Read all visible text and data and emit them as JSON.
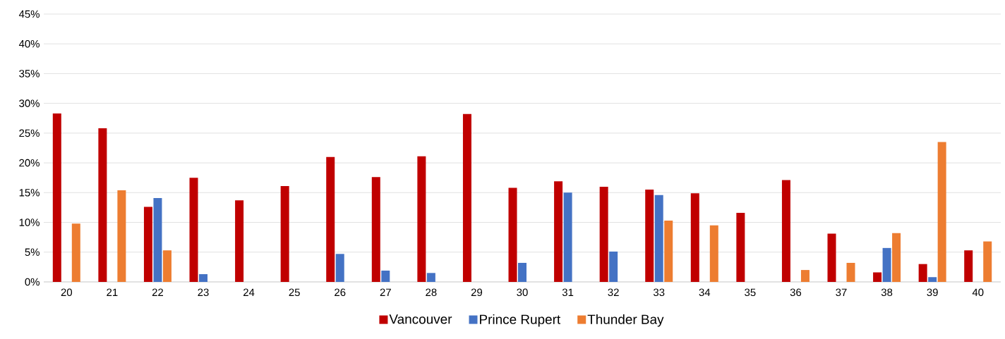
{
  "chart_data": {
    "type": "bar",
    "categories": [
      "20",
      "21",
      "22",
      "23",
      "24",
      "25",
      "26",
      "27",
      "28",
      "29",
      "30",
      "31",
      "32",
      "33",
      "34",
      "35",
      "36",
      "37",
      "38",
      "39",
      "40"
    ],
    "series": [
      {
        "name": "Vancouver",
        "color": "#c00000",
        "values": [
          28.3,
          25.8,
          12.6,
          17.5,
          13.7,
          16.1,
          21.0,
          17.6,
          21.1,
          28.2,
          15.8,
          16.9,
          16.0,
          15.5,
          14.9,
          11.6,
          17.1,
          8.1,
          1.6,
          3.0,
          5.3
        ]
      },
      {
        "name": "Prince Rupert",
        "color": "#4472c4",
        "values": [
          null,
          null,
          14.1,
          1.3,
          null,
          null,
          4.7,
          1.9,
          1.5,
          null,
          3.2,
          15.0,
          5.1,
          14.6,
          null,
          null,
          null,
          null,
          5.7,
          0.8,
          null
        ]
      },
      {
        "name": "Thunder Bay",
        "color": "#ed7d31",
        "values": [
          9.8,
          15.4,
          5.3,
          null,
          null,
          null,
          null,
          null,
          null,
          null,
          null,
          null,
          null,
          10.3,
          9.5,
          null,
          2.0,
          3.2,
          8.2,
          23.5,
          6.8
        ]
      }
    ],
    "ylim": [
      0,
      45
    ],
    "yticks": [
      {
        "value": 0,
        "label": "0%"
      },
      {
        "value": 5,
        "label": "5%"
      },
      {
        "value": 10,
        "label": "10%"
      },
      {
        "value": 15,
        "label": "15%"
      },
      {
        "value": 20,
        "label": "20%"
      },
      {
        "value": 25,
        "label": "25%"
      },
      {
        "value": 30,
        "label": "30%"
      },
      {
        "value": 35,
        "label": "35%"
      },
      {
        "value": 40,
        "label": "40%"
      },
      {
        "value": 45,
        "label": "45%"
      }
    ],
    "grid": "y",
    "legend": "bottom"
  }
}
